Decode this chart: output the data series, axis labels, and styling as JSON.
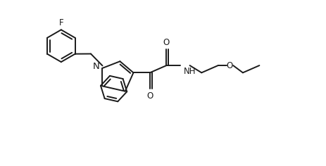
{
  "background_color": "#ffffff",
  "line_color": "#1a1a1a",
  "line_width": 1.4,
  "font_size": 8.5,
  "figsize": [
    4.64,
    2.36
  ],
  "dpi": 100,
  "xlim": [
    0,
    13
  ],
  "ylim": [
    0,
    8
  ]
}
